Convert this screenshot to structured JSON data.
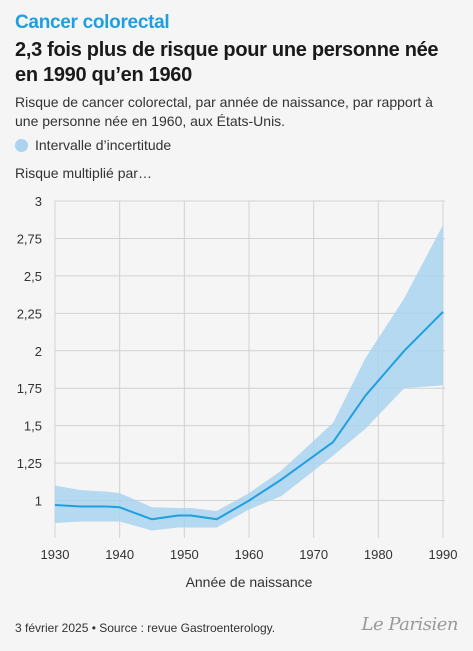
{
  "header": {
    "kicker": "Cancer colorectal",
    "title": "2,3 fois plus de risque pour une personne née en 1990 qu’en 1960",
    "subtitle": "Risque de cancer colorectal, par année de naissance, par rapport à une personne née en 1960, aux États-Unis."
  },
  "legend": {
    "label": "Intervalle d’incertitude",
    "color": "#a9d3ee"
  },
  "colors": {
    "line": "#1f9fe0",
    "band": "#a9d3ee",
    "grid": "#d2d2d2",
    "accent": "#1f9fe0"
  },
  "chart_data": {
    "type": "line",
    "ylabel": "Risque multiplié par…",
    "xlabel": "Année de naissance",
    "xlim": [
      1930,
      1990
    ],
    "ylim": [
      0.75,
      3
    ],
    "x_ticks": [
      1930,
      1940,
      1950,
      1960,
      1970,
      1980,
      1990
    ],
    "x_tick_labels": [
      "1930",
      "1940",
      "1950",
      "1960",
      "1970",
      "1980",
      "1990"
    ],
    "y_ticks": [
      1,
      1.25,
      1.5,
      1.75,
      2,
      2.25,
      2.5,
      2.75,
      3
    ],
    "y_tick_labels": [
      "1",
      "1,25",
      "1,5",
      "1,75",
      "2",
      "2,25",
      "2,5",
      "2,75",
      "3"
    ],
    "grid": true,
    "series": [
      {
        "x": [
          1930,
          1934,
          1938,
          1940,
          1945,
          1949,
          1951,
          1955,
          1960,
          1965,
          1973,
          1978,
          1984,
          1990
        ],
        "values": [
          0.97,
          0.96,
          0.96,
          0.955,
          0.875,
          0.9,
          0.9,
          0.875,
          1.0,
          1.14,
          1.39,
          1.7,
          2.0,
          2.26
        ],
        "lower": [
          0.85,
          0.86,
          0.86,
          0.86,
          0.8,
          0.82,
          0.82,
          0.82,
          0.94,
          1.03,
          1.3,
          1.48,
          1.75,
          1.77
        ],
        "upper": [
          1.1,
          1.07,
          1.06,
          1.05,
          0.955,
          0.95,
          0.95,
          0.93,
          1.05,
          1.2,
          1.52,
          1.95,
          2.35,
          2.84
        ]
      }
    ]
  },
  "footer": {
    "source": "3 février 2025 • Source : revue Gastroenterology.",
    "logo": "Le Parisien"
  }
}
